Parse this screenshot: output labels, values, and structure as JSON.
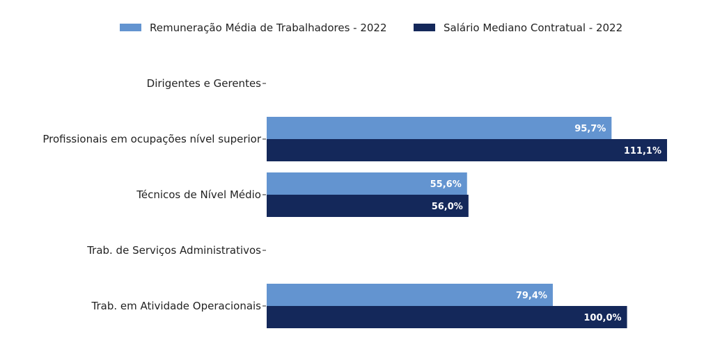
{
  "chart_data": {
    "type": "bar",
    "orientation": "horizontal",
    "categories": [
      "Dirigentes e Gerentes",
      "Profissionais em ocupações nível superior",
      "Técnicos de Nível Médio",
      "Trab. de Serviços Administrativos",
      "Trab. em Atividade Operacionais"
    ],
    "series": [
      {
        "name": "Remuneração Média de Trabalhadores - 2022",
        "color": "#6394d0",
        "values": [
          null,
          95.7,
          55.6,
          null,
          79.4
        ],
        "labels": [
          "",
          "95,7%",
          "55,6%",
          "",
          "79,4%"
        ]
      },
      {
        "name": "Salário Mediano Contratual - 2022",
        "color": "#14285a",
        "values": [
          null,
          111.1,
          56.0,
          null,
          100.0
        ],
        "labels": [
          "",
          "111,1%",
          "56,0%",
          "",
          "100,0%"
        ]
      }
    ],
    "xlim": [
      0,
      120
    ],
    "grid": false,
    "legend_position": "top"
  }
}
